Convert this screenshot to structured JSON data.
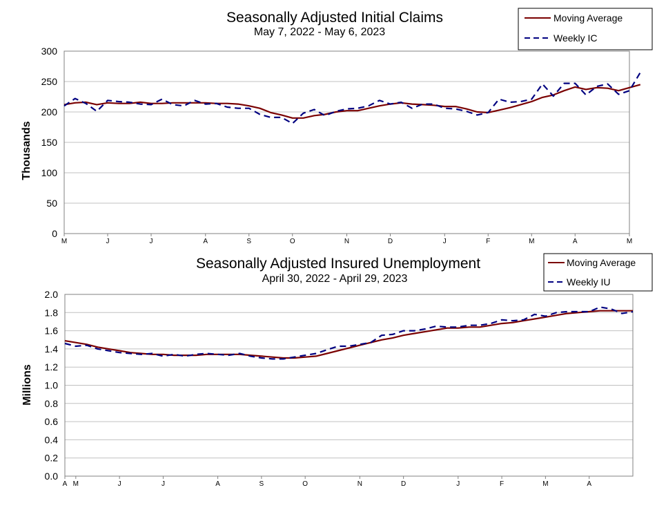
{
  "chart_data": [
    {
      "type": "line",
      "title": "Seasonally Adjusted Initial Claims",
      "subtitle": "May 7, 2022 - May 6, 2023",
      "ylabel": "Thousands",
      "xlabel": "",
      "ylim": [
        0,
        300
      ],
      "yticks": [
        0,
        50,
        100,
        150,
        200,
        250,
        300
      ],
      "x_range": [
        0,
        52
      ],
      "x_ticks": [
        {
          "label": "M",
          "pos": 0
        },
        {
          "label": "J",
          "pos": 4
        },
        {
          "label": "J",
          "pos": 8
        },
        {
          "label": "A",
          "pos": 13
        },
        {
          "label": "S",
          "pos": 17
        },
        {
          "label": "O",
          "pos": 21
        },
        {
          "label": "N",
          "pos": 26
        },
        {
          "label": "D",
          "pos": 30
        },
        {
          "label": "J",
          "pos": 35
        },
        {
          "label": "F",
          "pos": 39
        },
        {
          "label": "M",
          "pos": 43
        },
        {
          "label": "A",
          "pos": 47
        },
        {
          "label": "M",
          "pos": 52
        }
      ],
      "grid": true,
      "legend": "top-right",
      "colors": {
        "moving_average": "#7a0000",
        "weekly": "#000080"
      },
      "series": [
        {
          "name": "Moving Average",
          "values": [
            212,
            215,
            216,
            212,
            215,
            214,
            214,
            216,
            214,
            214,
            215,
            215,
            215,
            215,
            214,
            214,
            213,
            210,
            206,
            199,
            195,
            190,
            190,
            194,
            196,
            200,
            202,
            202,
            206,
            210,
            213,
            215,
            213,
            212,
            211,
            209,
            209,
            205,
            200,
            199,
            203,
            207,
            212,
            217,
            224,
            228,
            235,
            241,
            237,
            240,
            239,
            235,
            240,
            245
          ]
        },
        {
          "name": "Weekly IC",
          "values": [
            210,
            222,
            214,
            201,
            219,
            217,
            216,
            213,
            212,
            221,
            212,
            210,
            219,
            213,
            214,
            208,
            206,
            206,
            196,
            191,
            191,
            181,
            198,
            204,
            194,
            201,
            205,
            206,
            210,
            219,
            213,
            216,
            206,
            213,
            213,
            206,
            205,
            201,
            195,
            199,
            221,
            216,
            217,
            221,
            246,
            226,
            247,
            247,
            228,
            242,
            246,
            229,
            235,
            265
          ]
        }
      ]
    },
    {
      "type": "line",
      "title": "Seasonally Adjusted Insured Unemployment",
      "subtitle": "April 30, 2022 - April 29, 2023",
      "ylabel": "Millions",
      "xlabel": "",
      "ylim": [
        0.0,
        2.0
      ],
      "yticks": [
        "0.0",
        "0.2",
        "0.4",
        "0.6",
        "0.8",
        "1.0",
        "1.2",
        "1.4",
        "1.6",
        "1.8",
        "2.0"
      ],
      "x_range": [
        0,
        52
      ],
      "x_ticks": [
        {
          "label": "A",
          "pos": 0
        },
        {
          "label": "M",
          "pos": 1
        },
        {
          "label": "J",
          "pos": 5
        },
        {
          "label": "J",
          "pos": 9
        },
        {
          "label": "A",
          "pos": 14
        },
        {
          "label": "S",
          "pos": 18
        },
        {
          "label": "O",
          "pos": 22
        },
        {
          "label": "N",
          "pos": 27
        },
        {
          "label": "D",
          "pos": 31
        },
        {
          "label": "J",
          "pos": 36
        },
        {
          "label": "F",
          "pos": 40
        },
        {
          "label": "M",
          "pos": 44
        },
        {
          "label": "A",
          "pos": 48
        }
      ],
      "grid": true,
      "legend": "top-right",
      "colors": {
        "moving_average": "#7a0000",
        "weekly": "#000080"
      },
      "series": [
        {
          "name": "Moving Average",
          "values": [
            1.49,
            1.47,
            1.45,
            1.42,
            1.4,
            1.38,
            1.36,
            1.35,
            1.34,
            1.34,
            1.33,
            1.33,
            1.33,
            1.34,
            1.34,
            1.34,
            1.34,
            1.33,
            1.32,
            1.31,
            1.3,
            1.3,
            1.31,
            1.32,
            1.35,
            1.38,
            1.41,
            1.44,
            1.47,
            1.5,
            1.52,
            1.55,
            1.57,
            1.59,
            1.61,
            1.63,
            1.63,
            1.64,
            1.64,
            1.66,
            1.68,
            1.69,
            1.71,
            1.73,
            1.75,
            1.77,
            1.79,
            1.8,
            1.81,
            1.82,
            1.82,
            1.82,
            1.82
          ]
        },
        {
          "name": "Weekly IU",
          "values": [
            1.46,
            1.43,
            1.44,
            1.4,
            1.38,
            1.36,
            1.35,
            1.34,
            1.35,
            1.32,
            1.34,
            1.32,
            1.34,
            1.35,
            1.34,
            1.33,
            1.35,
            1.32,
            1.3,
            1.29,
            1.29,
            1.31,
            1.33,
            1.35,
            1.39,
            1.43,
            1.43,
            1.45,
            1.47,
            1.55,
            1.56,
            1.6,
            1.6,
            1.62,
            1.65,
            1.64,
            1.64,
            1.66,
            1.66,
            1.68,
            1.72,
            1.71,
            1.72,
            1.78,
            1.76,
            1.8,
            1.81,
            1.81,
            1.81,
            1.86,
            1.84,
            1.79,
            1.81
          ]
        }
      ]
    }
  ]
}
